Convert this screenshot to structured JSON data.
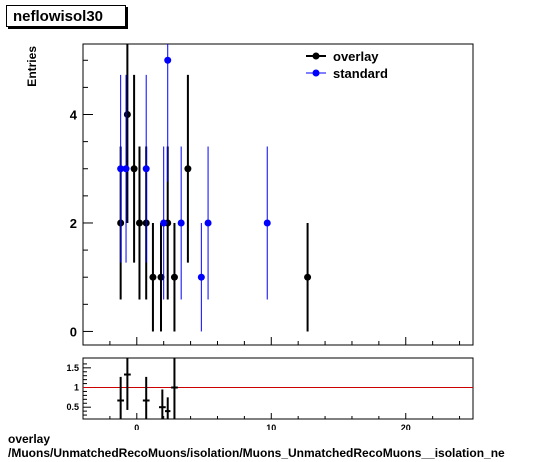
{
  "chart_data": [
    {
      "type": "scatter",
      "title": "neflowisol30",
      "ylabel": "Entries",
      "xlim": [
        -4,
        25
      ],
      "ylim": [
        -0.25,
        5.3
      ],
      "x_tick_labels": [
        "0",
        "10",
        "20"
      ],
      "y_tick_labels": [
        "0",
        "2",
        "4"
      ],
      "legend_position": "top-right",
      "series": [
        {
          "name": "overlay",
          "color": "#000000",
          "points": [
            {
              "x": -1.2,
              "y": 2,
              "err": 1.41
            },
            {
              "x": -0.7,
              "y": 4,
              "err": 2.0
            },
            {
              "x": -0.2,
              "y": 3,
              "err": 1.73
            },
            {
              "x": 0.2,
              "y": 2,
              "err": 1.41
            },
            {
              "x": 0.7,
              "y": 2,
              "err": 1.41
            },
            {
              "x": 1.2,
              "y": 1,
              "err": 1.0
            },
            {
              "x": 1.8,
              "y": 1,
              "err": 1.0
            },
            {
              "x": 2.3,
              "y": 2,
              "err": 1.41
            },
            {
              "x": 2.8,
              "y": 1,
              "err": 1.0
            },
            {
              "x": 3.8,
              "y": 3,
              "err": 1.73
            },
            {
              "x": 12.7,
              "y": 1,
              "err": 1.0
            }
          ]
        },
        {
          "name": "standard",
          "color": "#0000ff",
          "points": [
            {
              "x": -1.2,
              "y": 3,
              "err": 1.73
            },
            {
              "x": -0.8,
              "y": 3,
              "err": 1.73
            },
            {
              "x": 0.7,
              "y": 3,
              "err": 1.73
            },
            {
              "x": 2.0,
              "y": 2,
              "err": 1.41
            },
            {
              "x": 2.3,
              "y": 5,
              "err": 2.24
            },
            {
              "x": 3.3,
              "y": 2,
              "err": 1.41
            },
            {
              "x": 4.8,
              "y": 1,
              "err": 1.0
            },
            {
              "x": 5.3,
              "y": 2,
              "err": 1.41
            },
            {
              "x": 9.7,
              "y": 2,
              "err": 1.41
            }
          ]
        }
      ]
    },
    {
      "type": "scatter",
      "title": "",
      "xlim": [
        -4,
        25
      ],
      "ylim": [
        0.2,
        1.75
      ],
      "x_tick_labels": [
        "0",
        "10",
        "20"
      ],
      "y_tick_labels": [
        "0.5",
        "1",
        "1.5"
      ],
      "reference_line": {
        "y": 1,
        "color": "#cc0000"
      },
      "series": [
        {
          "name": "",
          "color": "#000000",
          "points": [
            {
              "x": -1.2,
              "y": 0.67,
              "xerr": 0.25,
              "err": 0.6
            },
            {
              "x": -0.7,
              "y": 1.33,
              "xerr": 0.25,
              "err": 0.9
            },
            {
              "x": 0.7,
              "y": 0.67,
              "xerr": 0.25,
              "err": 0.6
            },
            {
              "x": 1.9,
              "y": 0.5,
              "xerr": 0.25,
              "err": 0.45
            },
            {
              "x": 2.3,
              "y": 0.4,
              "xerr": 0.2,
              "err": 0.35
            },
            {
              "x": 2.8,
              "y": 1.0,
              "xerr": 0.25,
              "err": 0.9
            }
          ]
        }
      ]
    }
  ],
  "caption": {
    "line1": "overlay",
    "line2": "/Muons/UnmatchedRecoMuons/isolation/Muons_UnmatchedRecoMuons__isolation_ne"
  }
}
